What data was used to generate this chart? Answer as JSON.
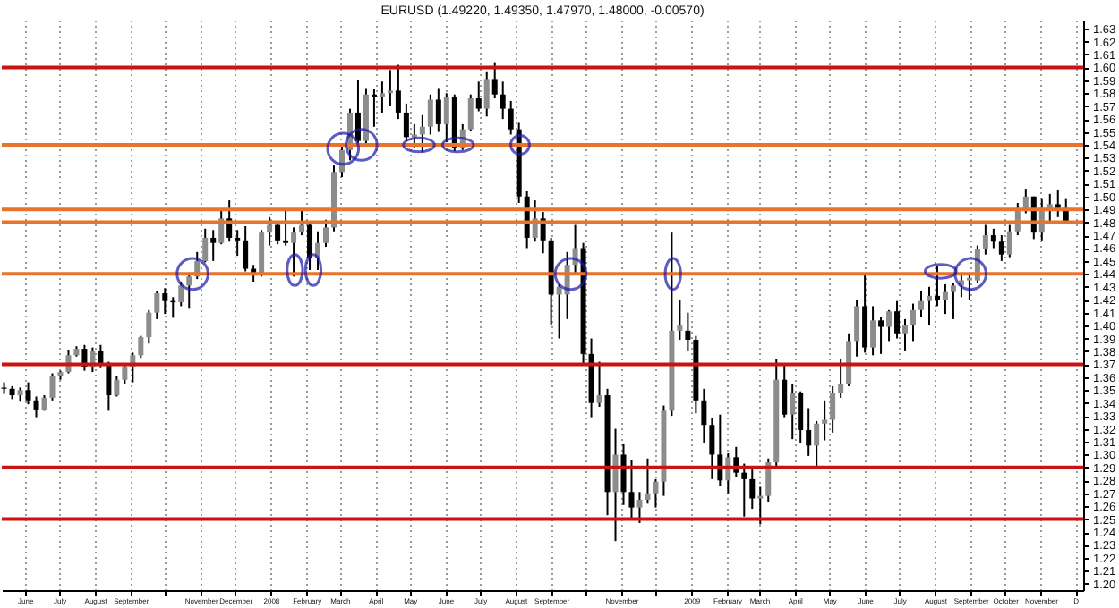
{
  "chart_data": {
    "type": "candlestick",
    "title": "EURUSD (1.49220, 1.49350, 1.47970, 1.48000, -0.00570)",
    "x": [
      "2007-05-14",
      "2007-05-21",
      "2007-05-28",
      "2007-06-04",
      "2007-06-11",
      "2007-06-18",
      "2007-06-25",
      "2007-07-02",
      "2007-07-09",
      "2007-07-16",
      "2007-07-23",
      "2007-07-30",
      "2007-08-06",
      "2007-08-13",
      "2007-08-20",
      "2007-08-27",
      "2007-09-03",
      "2007-09-10",
      "2007-09-17",
      "2007-09-24",
      "2007-10-01",
      "2007-10-08",
      "2007-10-15",
      "2007-10-22",
      "2007-10-29",
      "2007-11-05",
      "2007-11-12",
      "2007-11-19",
      "2007-11-26",
      "2007-12-03",
      "2007-12-10",
      "2007-12-17",
      "2007-12-24",
      "2007-12-31",
      "2008-01-07",
      "2008-01-14",
      "2008-01-21",
      "2008-01-28",
      "2008-02-04",
      "2008-02-11",
      "2008-02-18",
      "2008-02-25",
      "2008-03-03",
      "2008-03-10",
      "2008-03-17",
      "2008-03-24",
      "2008-03-31",
      "2008-04-07",
      "2008-04-14",
      "2008-04-21",
      "2008-04-28",
      "2008-05-05",
      "2008-05-12",
      "2008-05-19",
      "2008-05-26",
      "2008-06-02",
      "2008-06-09",
      "2008-06-16",
      "2008-06-23",
      "2008-06-30",
      "2008-07-07",
      "2008-07-14",
      "2008-07-21",
      "2008-07-28",
      "2008-08-04",
      "2008-08-11",
      "2008-08-18",
      "2008-08-25",
      "2008-09-01",
      "2008-09-08",
      "2008-09-15",
      "2008-09-22",
      "2008-09-29",
      "2008-10-06",
      "2008-10-13",
      "2008-10-20",
      "2008-10-27",
      "2008-11-03",
      "2008-11-10",
      "2008-11-17",
      "2008-11-24",
      "2008-12-01",
      "2008-12-08",
      "2008-12-15",
      "2008-12-22",
      "2008-12-29",
      "2009-01-05",
      "2009-01-12",
      "2009-01-19",
      "2009-01-26",
      "2009-02-02",
      "2009-02-09",
      "2009-02-16",
      "2009-02-23",
      "2009-03-02",
      "2009-03-09",
      "2009-03-16",
      "2009-03-23",
      "2009-03-30",
      "2009-04-06",
      "2009-04-13",
      "2009-04-20",
      "2009-04-27",
      "2009-05-04",
      "2009-05-11",
      "2009-05-18",
      "2009-05-25",
      "2009-06-01",
      "2009-06-08",
      "2009-06-15",
      "2009-06-22",
      "2009-06-29",
      "2009-07-06",
      "2009-07-13",
      "2009-07-20",
      "2009-07-27",
      "2009-08-03",
      "2009-08-10",
      "2009-08-17",
      "2009-08-24",
      "2009-08-31",
      "2009-09-07",
      "2009-09-14",
      "2009-09-21",
      "2009-09-28",
      "2009-10-05",
      "2009-10-12",
      "2009-10-19",
      "2009-10-26",
      "2009-11-02",
      "2009-11-09",
      "2009-11-16",
      "2009-11-23"
    ],
    "ohlc": [
      [
        1.352,
        1.356,
        1.347,
        1.351
      ],
      [
        1.351,
        1.353,
        1.343,
        1.346
      ],
      [
        1.346,
        1.352,
        1.341,
        1.35
      ],
      [
        1.35,
        1.356,
        1.339,
        1.342
      ],
      [
        1.342,
        1.345,
        1.329,
        1.335
      ],
      [
        1.335,
        1.346,
        1.334,
        1.344
      ],
      [
        1.344,
        1.363,
        1.342,
        1.361
      ],
      [
        1.361,
        1.365,
        1.358,
        1.364
      ],
      [
        1.364,
        1.381,
        1.363,
        1.377
      ],
      [
        1.377,
        1.384,
        1.376,
        1.382
      ],
      [
        1.382,
        1.385,
        1.365,
        1.368
      ],
      [
        1.368,
        1.383,
        1.364,
        1.38
      ],
      [
        1.38,
        1.385,
        1.367,
        1.37
      ],
      [
        1.37,
        1.372,
        1.334,
        1.346
      ],
      [
        1.346,
        1.361,
        1.345,
        1.358
      ],
      [
        1.358,
        1.371,
        1.355,
        1.368
      ],
      [
        1.368,
        1.379,
        1.356,
        1.377
      ],
      [
        1.377,
        1.392,
        1.375,
        1.391
      ],
      [
        1.391,
        1.412,
        1.386,
        1.41
      ],
      [
        1.41,
        1.427,
        1.405,
        1.425
      ],
      [
        1.425,
        1.429,
        1.409,
        1.419
      ],
      [
        1.419,
        1.422,
        1.406,
        1.418
      ],
      [
        1.418,
        1.434,
        1.415,
        1.431
      ],
      [
        1.431,
        1.441,
        1.413,
        1.438
      ],
      [
        1.438,
        1.457,
        1.436,
        1.45
      ],
      [
        1.45,
        1.475,
        1.449,
        1.468
      ],
      [
        1.468,
        1.474,
        1.45,
        1.464
      ],
      [
        1.464,
        1.49,
        1.463,
        1.483
      ],
      [
        1.483,
        1.497,
        1.465,
        1.468
      ],
      [
        1.468,
        1.474,
        1.454,
        1.466
      ],
      [
        1.466,
        1.477,
        1.442,
        1.444
      ],
      [
        1.444,
        1.447,
        1.434,
        1.44
      ],
      [
        1.44,
        1.474,
        1.438,
        1.472
      ],
      [
        1.472,
        1.484,
        1.462,
        1.478
      ],
      [
        1.478,
        1.481,
        1.463,
        1.466
      ],
      [
        1.466,
        1.49,
        1.462,
        1.464
      ],
      [
        1.464,
        1.476,
        1.438,
        1.472
      ],
      [
        1.472,
        1.49,
        1.47,
        1.478
      ],
      [
        1.478,
        1.481,
        1.443,
        1.452
      ],
      [
        1.452,
        1.473,
        1.443,
        1.464
      ],
      [
        1.464,
        1.482,
        1.461,
        1.476
      ],
      [
        1.476,
        1.524,
        1.473,
        1.519
      ],
      [
        1.519,
        1.54,
        1.515,
        1.536
      ],
      [
        1.536,
        1.568,
        1.528,
        1.565
      ],
      [
        1.565,
        1.59,
        1.54,
        1.543
      ],
      [
        1.543,
        1.584,
        1.541,
        1.579
      ],
      [
        1.579,
        1.583,
        1.554,
        1.577
      ],
      [
        1.577,
        1.589,
        1.565,
        1.58
      ],
      [
        1.58,
        1.598,
        1.57,
        1.582
      ],
      [
        1.582,
        1.602,
        1.56,
        1.565
      ],
      [
        1.565,
        1.572,
        1.543,
        1.546
      ],
      [
        1.546,
        1.556,
        1.538,
        1.548
      ],
      [
        1.548,
        1.563,
        1.534,
        1.554
      ],
      [
        1.554,
        1.579,
        1.548,
        1.575
      ],
      [
        1.575,
        1.584,
        1.55,
        1.556
      ],
      [
        1.556,
        1.58,
        1.542,
        1.577
      ],
      [
        1.577,
        1.579,
        1.535,
        1.538
      ],
      [
        1.538,
        1.556,
        1.536,
        1.552
      ],
      [
        1.552,
        1.579,
        1.551,
        1.576
      ],
      [
        1.576,
        1.589,
        1.566,
        1.568
      ],
      [
        1.568,
        1.597,
        1.562,
        1.591
      ],
      [
        1.591,
        1.604,
        1.576,
        1.579
      ],
      [
        1.579,
        1.589,
        1.56,
        1.568
      ],
      [
        1.568,
        1.574,
        1.548,
        1.552
      ],
      [
        1.552,
        1.557,
        1.495,
        1.5
      ],
      [
        1.5,
        1.504,
        1.46,
        1.468
      ],
      [
        1.468,
        1.497,
        1.465,
        1.483
      ],
      [
        1.483,
        1.488,
        1.456,
        1.466
      ],
      [
        1.466,
        1.468,
        1.4,
        1.424
      ],
      [
        1.424,
        1.432,
        1.39,
        1.43
      ],
      [
        1.424,
        1.457,
        1.405,
        1.447
      ],
      [
        1.447,
        1.478,
        1.44,
        1.46
      ],
      [
        1.46,
        1.464,
        1.371,
        1.378
      ],
      [
        1.378,
        1.39,
        1.329,
        1.34
      ],
      [
        1.34,
        1.372,
        1.337,
        1.346
      ],
      [
        1.346,
        1.351,
        1.253,
        1.271
      ],
      [
        1.271,
        1.32,
        1.233,
        1.3
      ],
      [
        1.3,
        1.308,
        1.261,
        1.271
      ],
      [
        1.271,
        1.296,
        1.249,
        1.259
      ],
      [
        1.259,
        1.271,
        1.247,
        1.265
      ],
      [
        1.265,
        1.297,
        1.262,
        1.27
      ],
      [
        1.27,
        1.281,
        1.259,
        1.279
      ],
      [
        1.279,
        1.338,
        1.268,
        1.334
      ],
      [
        1.334,
        1.472,
        1.33,
        1.396
      ],
      [
        1.396,
        1.42,
        1.389,
        1.4
      ],
      [
        1.396,
        1.41,
        1.38,
        1.389
      ],
      [
        1.389,
        1.392,
        1.332,
        1.342
      ],
      [
        1.342,
        1.351,
        1.309,
        1.323
      ],
      [
        1.323,
        1.328,
        1.281,
        1.3
      ],
      [
        1.3,
        1.331,
        1.276,
        1.28
      ],
      [
        1.28,
        1.301,
        1.27,
        1.298
      ],
      [
        1.298,
        1.306,
        1.283,
        1.286
      ],
      [
        1.286,
        1.293,
        1.252,
        1.281
      ],
      [
        1.281,
        1.29,
        1.258,
        1.266
      ],
      [
        1.266,
        1.275,
        1.246,
        1.268
      ],
      [
        1.268,
        1.297,
        1.263,
        1.294
      ],
      [
        1.294,
        1.374,
        1.291,
        1.358
      ],
      [
        1.358,
        1.37,
        1.329,
        1.331
      ],
      [
        1.331,
        1.355,
        1.312,
        1.348
      ],
      [
        1.348,
        1.349,
        1.309,
        1.319
      ],
      [
        1.319,
        1.336,
        1.299,
        1.307
      ],
      [
        1.307,
        1.326,
        1.29,
        1.324
      ],
      [
        1.324,
        1.342,
        1.311,
        1.327
      ],
      [
        1.327,
        1.353,
        1.317,
        1.348
      ],
      [
        1.348,
        1.374,
        1.344,
        1.355
      ],
      [
        1.355,
        1.394,
        1.353,
        1.388
      ],
      [
        1.388,
        1.42,
        1.376,
        1.415
      ],
      [
        1.415,
        1.44,
        1.379,
        1.383
      ],
      [
        1.383,
        1.415,
        1.377,
        1.404
      ],
      [
        1.404,
        1.407,
        1.378,
        1.399
      ],
      [
        1.399,
        1.412,
        1.388,
        1.411
      ],
      [
        1.411,
        1.419,
        1.39,
        1.394
      ],
      [
        1.394,
        1.405,
        1.38,
        1.4
      ],
      [
        1.4,
        1.417,
        1.388,
        1.412
      ],
      [
        1.412,
        1.427,
        1.407,
        1.419
      ],
      [
        1.419,
        1.43,
        1.4,
        1.423
      ],
      [
        1.423,
        1.446,
        1.415,
        1.42
      ],
      [
        1.42,
        1.432,
        1.409,
        1.426
      ],
      [
        1.426,
        1.433,
        1.405,
        1.431
      ],
      [
        1.431,
        1.441,
        1.422,
        1.435
      ],
      [
        1.435,
        1.441,
        1.42,
        1.437
      ],
      [
        1.435,
        1.462,
        1.433,
        1.459
      ],
      [
        1.459,
        1.478,
        1.455,
        1.47
      ],
      [
        1.47,
        1.475,
        1.46,
        1.465
      ],
      [
        1.465,
        1.47,
        1.45,
        1.455
      ],
      [
        1.455,
        1.478,
        1.453,
        1.473
      ],
      [
        1.473,
        1.495,
        1.47,
        1.49
      ],
      [
        1.49,
        1.506,
        1.487,
        1.5
      ],
      [
        1.5,
        1.5,
        1.467,
        1.472
      ],
      [
        1.472,
        1.498,
        1.466,
        1.49
      ],
      [
        1.49,
        1.502,
        1.481,
        1.494
      ],
      [
        1.494,
        1.505,
        1.484,
        1.491
      ],
      [
        1.491,
        1.498,
        1.48,
        1.48
      ]
    ],
    "xlim": [
      "2007-05-12",
      "2009-12-08"
    ],
    "xticks": [
      {
        "value": "2007-06-01",
        "label": "June"
      },
      {
        "value": "2007-07-01",
        "label": "July"
      },
      {
        "value": "2007-08-01",
        "label": "August"
      },
      {
        "value": "2007-09-01",
        "label": "September"
      },
      {
        "value": "2007-10-01",
        "label": null
      },
      {
        "value": "2007-11-01",
        "label": "November"
      },
      {
        "value": "2007-12-01",
        "label": "December"
      },
      {
        "value": "2008-01-01",
        "label": "2008"
      },
      {
        "value": "2008-02-01",
        "label": "February"
      },
      {
        "value": "2008-03-01",
        "label": "March"
      },
      {
        "value": "2008-04-01",
        "label": "April"
      },
      {
        "value": "2008-05-01",
        "label": "May"
      },
      {
        "value": "2008-06-01",
        "label": "June"
      },
      {
        "value": "2008-07-01",
        "label": "July"
      },
      {
        "value": "2008-08-01",
        "label": "August"
      },
      {
        "value": "2008-09-01",
        "label": "September"
      },
      {
        "value": "2008-10-01",
        "label": null
      },
      {
        "value": "2008-11-01",
        "label": "November"
      },
      {
        "value": "2008-12-01",
        "label": null
      },
      {
        "value": "2009-01-01",
        "label": "2009"
      },
      {
        "value": "2009-02-01",
        "label": "February"
      },
      {
        "value": "2009-03-01",
        "label": "March"
      },
      {
        "value": "2009-04-01",
        "label": "April"
      },
      {
        "value": "2009-05-01",
        "label": "May"
      },
      {
        "value": "2009-06-01",
        "label": "June"
      },
      {
        "value": "2009-07-01",
        "label": "July"
      },
      {
        "value": "2009-08-01",
        "label": "August"
      },
      {
        "value": "2009-09-01",
        "label": "September"
      },
      {
        "value": "2009-10-01",
        "label": "October"
      },
      {
        "value": "2009-11-01",
        "label": "November"
      },
      {
        "value": "2009-12-01",
        "label": "D"
      }
    ],
    "ylim": [
      1.195,
      1.637
    ],
    "yticks": [
      {
        "value": 1.2,
        "label": "1.20"
      },
      1.21,
      1.22,
      1.23,
      1.24,
      1.25,
      1.26,
      1.27,
      1.28,
      1.29,
      {
        "value": 1.3,
        "label": "1.30"
      },
      1.31,
      1.32,
      1.33,
      1.34,
      1.35,
      1.36,
      1.37,
      1.38,
      1.39,
      {
        "value": 1.4,
        "label": "1.40"
      },
      1.41,
      1.42,
      1.43,
      1.44,
      1.45,
      1.46,
      1.47,
      1.48,
      1.49,
      {
        "value": 1.5,
        "label": "1.50"
      },
      1.51,
      1.52,
      1.53,
      1.54,
      1.55,
      1.56,
      1.57,
      1.58,
      1.59,
      {
        "value": 1.6,
        "label": "1.60"
      },
      1.61,
      1.62,
      1.63
    ],
    "grid": "x",
    "ref_lines": [
      {
        "axis": "y",
        "value": 1.6,
        "color": "#cc1111"
      },
      {
        "axis": "y",
        "value": 1.54,
        "color": "#e8732e"
      },
      {
        "axis": "y",
        "value": 1.49,
        "color": "#e8732e"
      },
      {
        "axis": "y",
        "value": 1.48,
        "color": "#e8732e"
      },
      {
        "axis": "y",
        "value": 1.44,
        "color": "#e8732e"
      },
      {
        "axis": "y",
        "value": 1.37,
        "color": "#cc1111"
      },
      {
        "axis": "y",
        "value": 1.29,
        "color": "#cc1111"
      },
      {
        "axis": "y",
        "value": 1.25,
        "color": "#cc1111"
      }
    ]
  }
}
